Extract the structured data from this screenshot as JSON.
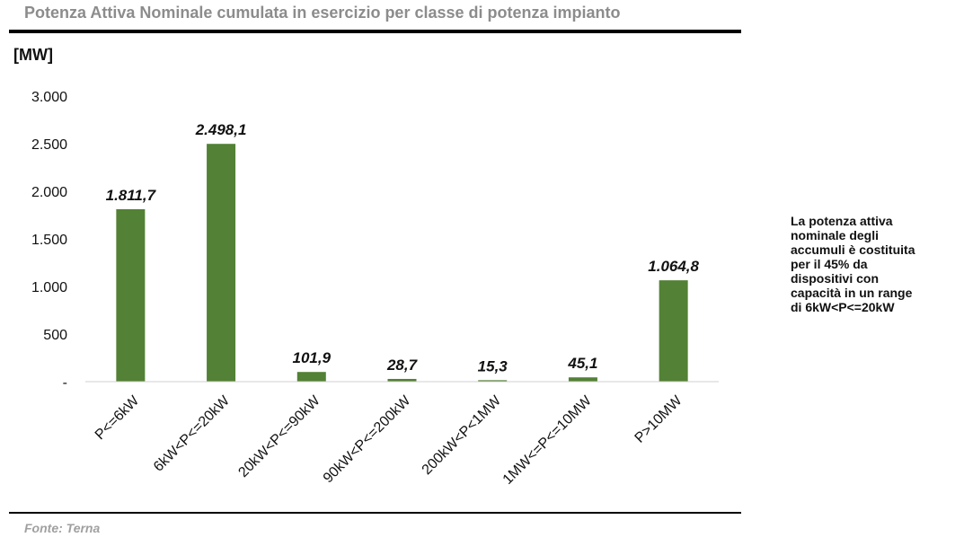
{
  "header": {
    "title": "Potenza Attiva Nominale cumulata in esercizio per classe di potenza impianto",
    "unit_label": "[MW]"
  },
  "chart_data": {
    "type": "bar",
    "title": "",
    "xlabel": "",
    "ylabel": "[MW]",
    "ylim": [
      0,
      3000
    ],
    "yticks": [
      0,
      500,
      1000,
      1500,
      2000,
      2500,
      3000
    ],
    "ytick_labels": [
      "-",
      "500",
      "1.000",
      "1.500",
      "2.000",
      "2.500",
      "3.000"
    ],
    "categories": [
      "P<=6kW",
      "6kW<P<=20kW",
      "20kW<P<=90kW",
      "90kW<P<=200kW",
      "200kW<P<1MW",
      "1MW<=P<=10MW",
      "P>10MW"
    ],
    "values": [
      1811.7,
      2498.1,
      101.9,
      28.7,
      15.3,
      45.1,
      1064.8
    ],
    "value_labels": [
      "1.811,7",
      "2.498,1",
      "101,9",
      "28,7",
      "15,3",
      "45,1",
      "1.064,8"
    ],
    "bar_color": "#538135",
    "grid": false,
    "legend": "none"
  },
  "note": {
    "text": "La potenza attiva nominale degli accumuli è costituita per il 45% da dispositivi con capacità in un range di 6kW<P<=20kW"
  },
  "footer": {
    "source": "Fonte: Terna"
  }
}
